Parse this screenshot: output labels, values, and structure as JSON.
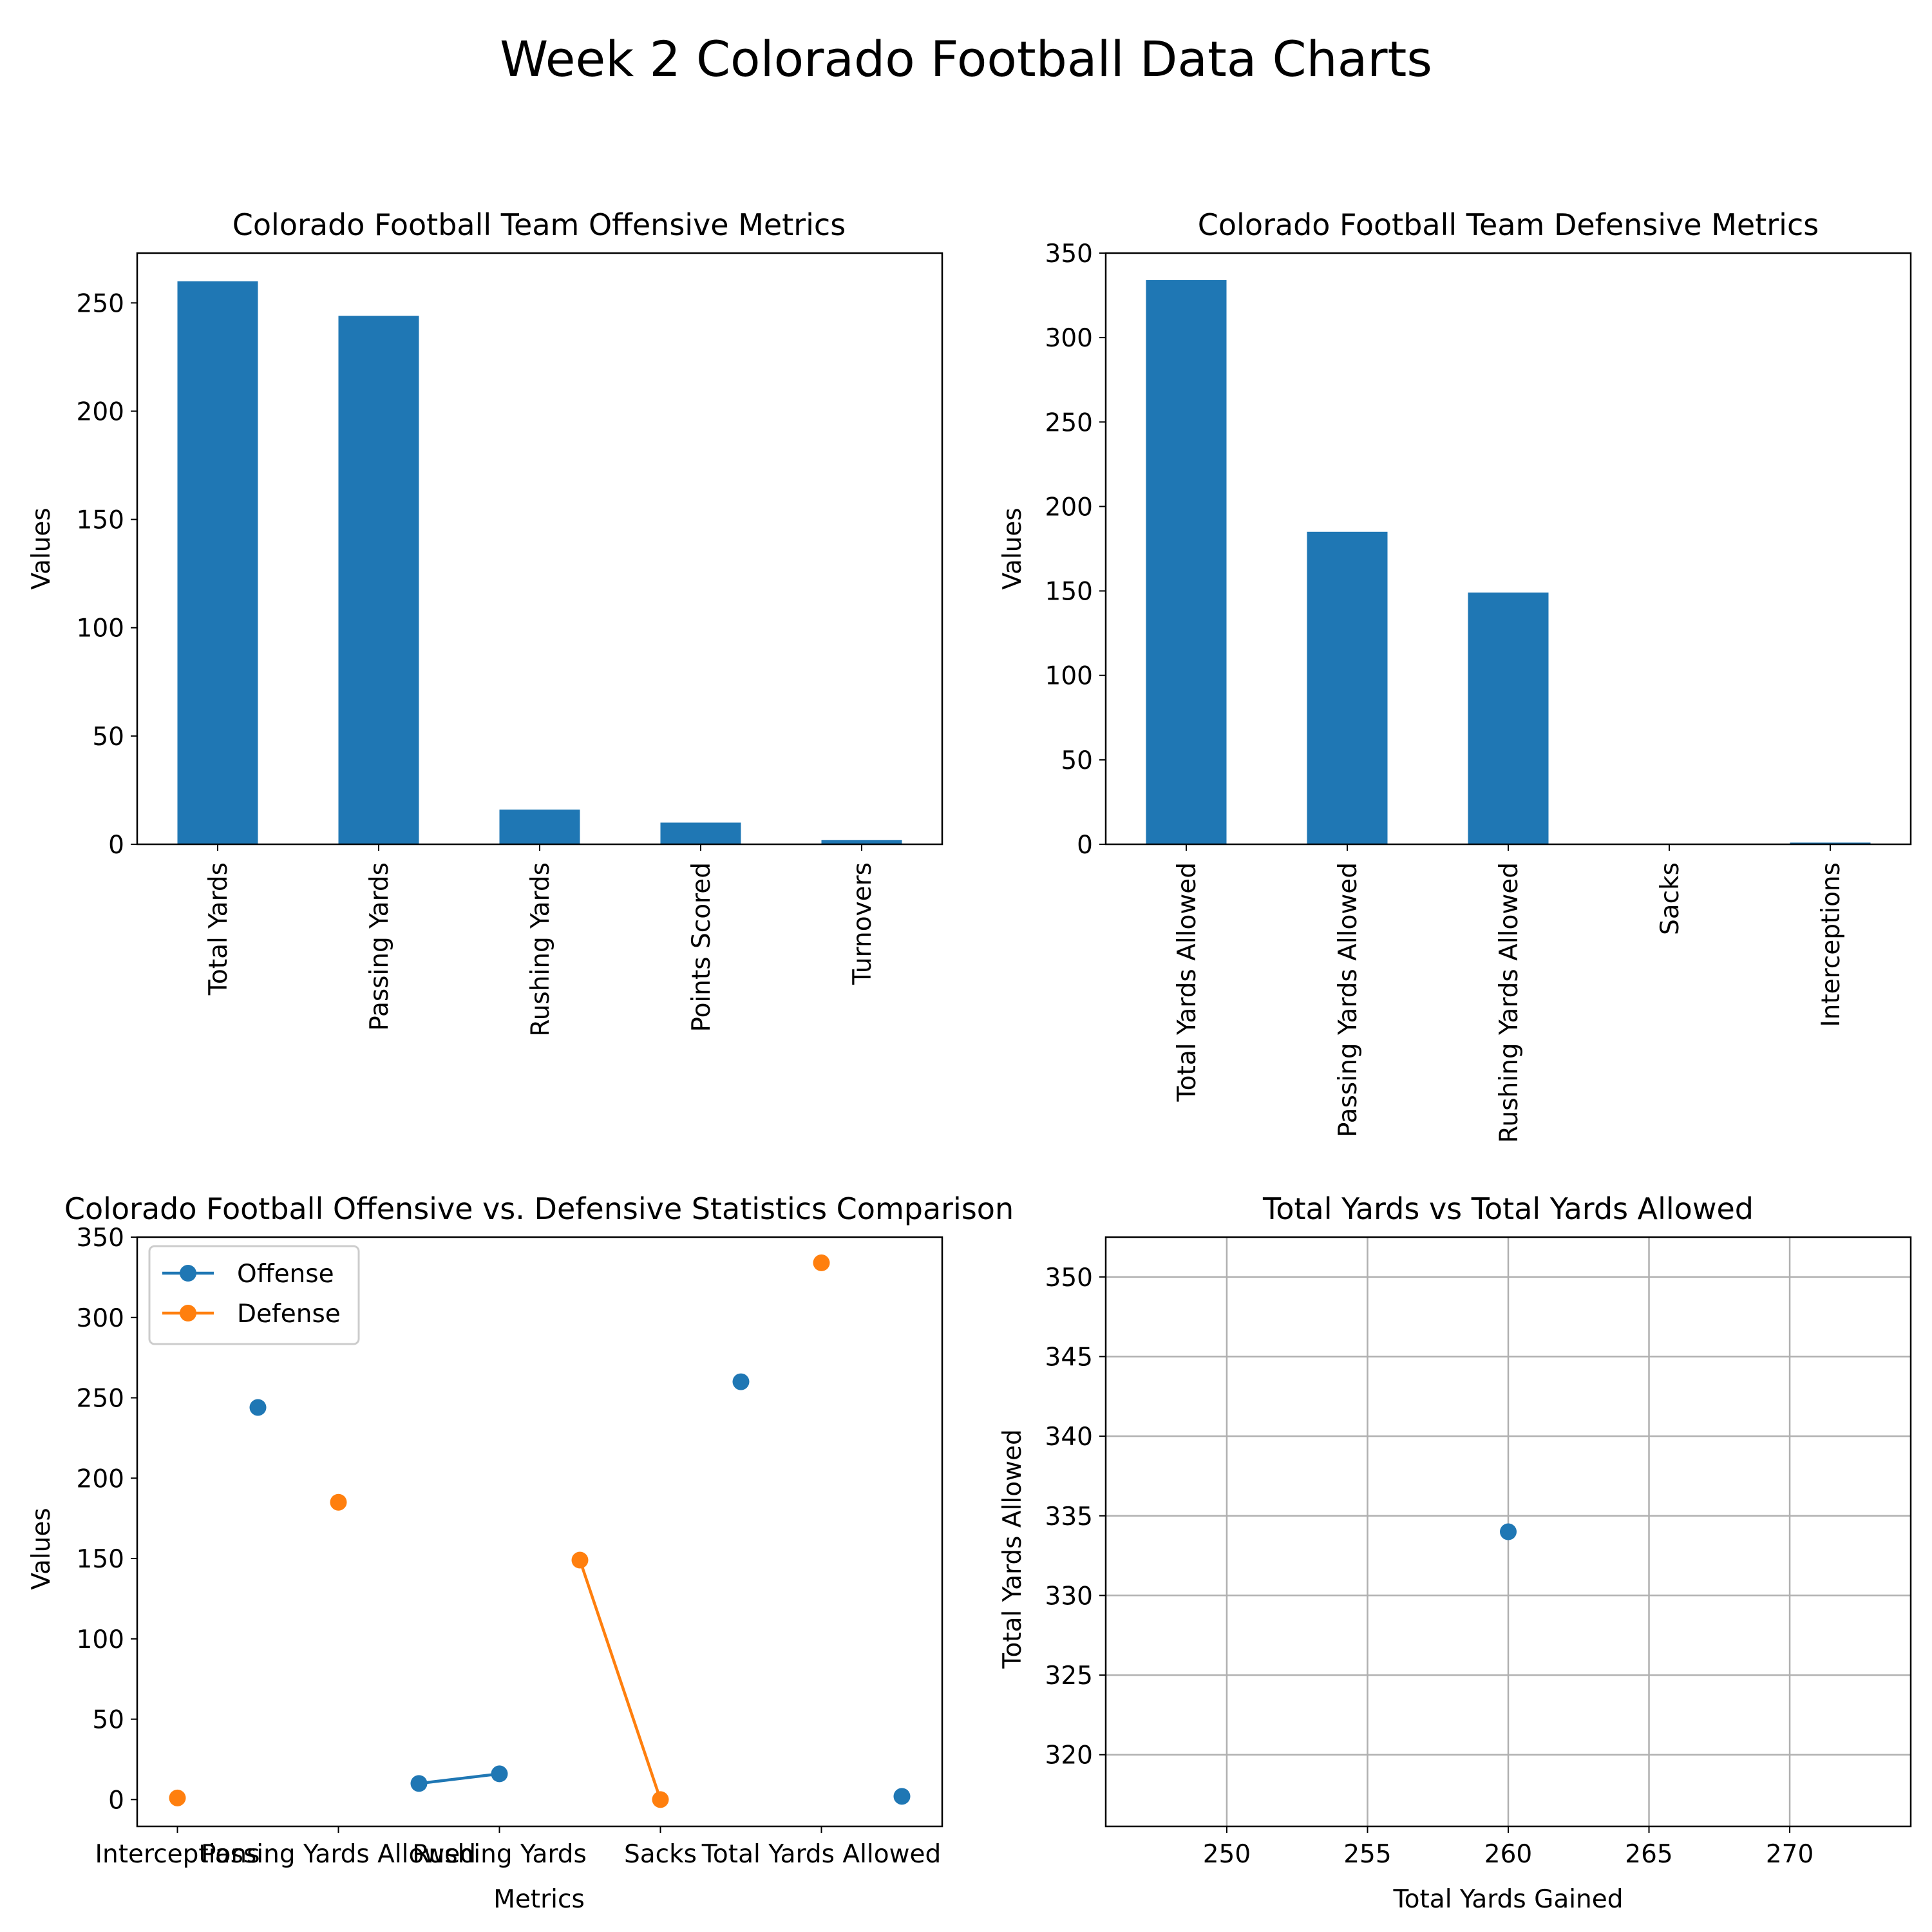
{
  "figure": {
    "title": "Week 2 Colorado Football Data Charts"
  },
  "colors": {
    "blue": "#1f77b4",
    "orange": "#ff7f0e",
    "grid": "#b0b0b0",
    "axis": "#000000"
  },
  "chart_data": [
    {
      "type": "bar",
      "title": "Colorado Football Team Offensive Metrics",
      "xlabel": "",
      "ylabel": "Values",
      "categories": [
        "Total Yards",
        "Passing Yards",
        "Rushing Yards",
        "Points Scored",
        "Turnovers"
      ],
      "values": [
        260,
        244,
        16,
        10,
        2
      ],
      "ylim": [
        0,
        273
      ],
      "yticks": [
        0,
        50,
        100,
        150,
        200,
        250
      ],
      "tick_label_rotation": "vertical",
      "grid": false
    },
    {
      "type": "bar",
      "title": "Colorado Football Team Defensive Metrics",
      "xlabel": "",
      "ylabel": "Values",
      "categories": [
        "Total Yards Allowed",
        "Passing Yards Allowed",
        "Rushing Yards Allowed",
        "Sacks",
        "Interceptions"
      ],
      "values": [
        334,
        185,
        149,
        0,
        1
      ],
      "ylim": [
        0,
        350
      ],
      "yticks": [
        0,
        50,
        100,
        150,
        200,
        250,
        300,
        350
      ],
      "tick_label_rotation": "vertical",
      "grid": false
    },
    {
      "type": "line",
      "title": "Colorado Football Offensive vs. Defensive Statistics Comparison",
      "xlabel": "Metrics",
      "ylabel": "Values",
      "x_tick_labels": [
        "Interceptions",
        "Passing Yards Allowed",
        "Rushing Yards",
        "Sacks",
        "Total Yards Allowed"
      ],
      "xlim": [
        -0.5,
        9.5
      ],
      "ylim": [
        -16.7,
        350
      ],
      "yticks": [
        0,
        50,
        100,
        150,
        200,
        250,
        300,
        350
      ],
      "legend": "top-left",
      "grid": false,
      "series": [
        {
          "name": "Offense",
          "color": "#1f77b4",
          "points": [
            {
              "x": 1,
              "y": 244
            },
            {
              "x": 3,
              "y": 10
            },
            {
              "x": 4,
              "y": 16
            },
            {
              "x": 7,
              "y": 260
            },
            {
              "x": 9,
              "y": 2
            }
          ],
          "connected_segments": [
            [
              3,
              4
            ]
          ]
        },
        {
          "name": "Defense",
          "color": "#ff7f0e",
          "points": [
            {
              "x": 0,
              "y": 1
            },
            {
              "x": 2,
              "y": 185
            },
            {
              "x": 5,
              "y": 149
            },
            {
              "x": 6,
              "y": 0
            },
            {
              "x": 8,
              "y": 334
            }
          ],
          "connected_segments": [
            [
              5,
              6
            ]
          ]
        }
      ]
    },
    {
      "type": "scatter",
      "title": "Total Yards vs Total Yards Allowed",
      "xlabel": "Total Yards Gained",
      "ylabel": "Total Yards Allowed",
      "points": [
        {
          "x": 260,
          "y": 334
        }
      ],
      "xlim": [
        245.7,
        274.3
      ],
      "ylim": [
        315.5,
        352.5
      ],
      "xticks": [
        250,
        255,
        260,
        265,
        270
      ],
      "yticks": [
        320,
        325,
        330,
        335,
        340,
        345,
        350
      ],
      "grid": true
    }
  ]
}
